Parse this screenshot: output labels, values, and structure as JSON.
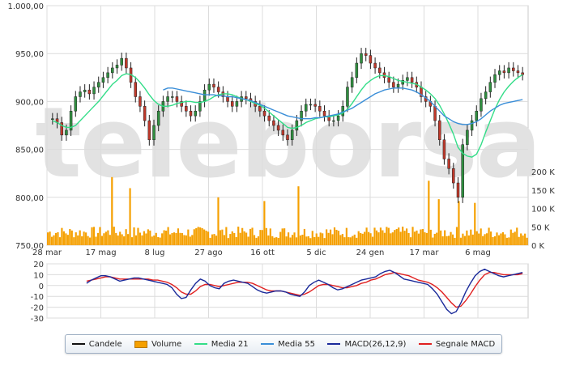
{
  "chart_data": [
    {
      "type": "candlestick",
      "series": [
        {
          "name": "Candele",
          "values": [
            882,
            878,
            865,
            870,
            890,
            905,
            910,
            912,
            908,
            915,
            920,
            925,
            930,
            935,
            938,
            945,
            935,
            920,
            905,
            895,
            880,
            860,
            875,
            890,
            900,
            905,
            905,
            900,
            895,
            890,
            885,
            890,
            900,
            912,
            918,
            915,
            910,
            905,
            900,
            895,
            900,
            905,
            903,
            900,
            895,
            890,
            885,
            880,
            875,
            870,
            865,
            860,
            870,
            880,
            890,
            897,
            897,
            895,
            890,
            885,
            880,
            880,
            885,
            895,
            915,
            925,
            940,
            950,
            948,
            940,
            935,
            930,
            925,
            920,
            915,
            918,
            922,
            925,
            920,
            915,
            905,
            900,
            895,
            880,
            860,
            840,
            830,
            815,
            800,
            855,
            870,
            880,
            890,
            903,
            910,
            920,
            928,
            932,
            930,
            935,
            932,
            930,
            928
          ]
        },
        {
          "name": "Media 21",
          "values": [
            880,
            878,
            875,
            873,
            873,
            875,
            880,
            885,
            890,
            895,
            900,
            906,
            912,
            918,
            922,
            927,
            929,
            928,
            925,
            920,
            914,
            907,
            901,
            897,
            895,
            895,
            896,
            898,
            899,
            900,
            900,
            899,
            899,
            900,
            902,
            905,
            907,
            908,
            908,
            907,
            905,
            903,
            902,
            900,
            898,
            896,
            893,
            889,
            885,
            881,
            877,
            873,
            872,
            873,
            875,
            878,
            880,
            882,
            883,
            884,
            884,
            885,
            886,
            888,
            892,
            898,
            905,
            912,
            918,
            922,
            925,
            927,
            927,
            926,
            924,
            922,
            921,
            920,
            919,
            918,
            915,
            912,
            908,
            903,
            896,
            887,
            877,
            866,
            852,
            846,
            843,
            842,
            845,
            855,
            868,
            880,
            892,
            902,
            910,
            916,
            921,
            925,
            928
          ]
        },
        {
          "name": "Media 55",
          "values": [
            null,
            null,
            null,
            null,
            null,
            null,
            null,
            null,
            null,
            null,
            null,
            null,
            null,
            null,
            null,
            null,
            null,
            null,
            null,
            null,
            null,
            null,
            null,
            null,
            912,
            914,
            914,
            913,
            912,
            911,
            910,
            909,
            908,
            907,
            907,
            907,
            906,
            906,
            905,
            905,
            904,
            903,
            902,
            901,
            899,
            897,
            895,
            893,
            891,
            889,
            887,
            885,
            884,
            883,
            882,
            882,
            882,
            883,
            883,
            884,
            885,
            886,
            887,
            889,
            891,
            893,
            896,
            899,
            902,
            905,
            908,
            910,
            912,
            913,
            914,
            914,
            914,
            913,
            912,
            910,
            907,
            904,
            900,
            895,
            890,
            885,
            882,
            879,
            877,
            876,
            876,
            877,
            879,
            882,
            886,
            890,
            893,
            896,
            898,
            899,
            900,
            901,
            902
          ]
        },
        {
          "name": "MACD(26,12,9)",
          "values": [
            2,
            5,
            7,
            9,
            9,
            8,
            6,
            4,
            5,
            6,
            7,
            7,
            6,
            5,
            4,
            3,
            2,
            1,
            -2,
            -8,
            -12,
            -11,
            -4,
            2,
            6,
            4,
            0,
            -2,
            -3,
            2,
            4,
            5,
            4,
            3,
            2,
            -1,
            -4,
            -6,
            -7,
            -6,
            -5,
            -5,
            -6,
            -8,
            -9,
            -10,
            -6,
            0,
            3,
            5,
            3,
            1,
            -2,
            -4,
            -3,
            -1,
            1,
            3,
            5,
            6,
            7,
            8,
            11,
            13,
            14,
            12,
            9,
            6,
            5,
            4,
            3,
            2,
            1,
            -3,
            -8,
            -15,
            -22,
            -26,
            -24,
            -16,
            -6,
            2,
            9,
            13,
            15,
            13,
            11,
            9,
            8,
            9,
            10,
            11,
            12
          ]
        },
        {
          "name": "Segnale MACD",
          "values": [
            4,
            5,
            6,
            7,
            8,
            8,
            7,
            6,
            6,
            6,
            6,
            6,
            6,
            6,
            5,
            5,
            4,
            3,
            1,
            -2,
            -6,
            -8,
            -8,
            -5,
            -1,
            1,
            1,
            0,
            -1,
            0,
            1,
            2,
            3,
            3,
            3,
            2,
            0,
            -2,
            -4,
            -5,
            -5,
            -5,
            -6,
            -7,
            -8,
            -9,
            -8,
            -6,
            -3,
            0,
            1,
            1,
            0,
            -1,
            -2,
            -2,
            -1,
            0,
            2,
            3,
            5,
            6,
            8,
            10,
            11,
            12,
            11,
            10,
            9,
            7,
            5,
            4,
            3,
            1,
            -2,
            -6,
            -11,
            -16,
            -20,
            -19,
            -14,
            -8,
            -1,
            5,
            10,
            12,
            12,
            11,
            10,
            10,
            10,
            10,
            11
          ]
        }
      ],
      "volume": {
        "name": "Volume",
        "baseline_approx": 35000,
        "spikes_approx": [
          185000,
          155000,
          130000,
          120000,
          160000,
          175000,
          125000,
          120000,
          115000
        ]
      },
      "x_tick_labels": [
        "28 mar",
        "17 mag",
        "8 lug",
        "27 ago",
        "16 ott",
        "5 dic",
        "24 gen",
        "17 mar",
        "6 mag"
      ],
      "y_tick_labels": [
        "1.000,00",
        "950,00",
        "900,00",
        "850,00",
        "800,00",
        "750,00"
      ],
      "ylim": [
        750,
        1000
      ],
      "volume_tick_labels": [
        "200 K",
        "150 K",
        "100 K",
        "50 K",
        "0 K"
      ],
      "volume_ylim": [
        0,
        200000
      ],
      "grid": true,
      "watermark": "teleborsa"
    },
    {
      "type": "line",
      "y_tick_labels": [
        "20",
        "10",
        "0",
        "-10",
        "-20",
        "-30"
      ],
      "ylim": [
        -30,
        20
      ],
      "grid": true
    }
  ],
  "legend": [
    {
      "label": "Candele",
      "color": "#111111",
      "kind": "line"
    },
    {
      "label": "Volume",
      "color": "#f5a000",
      "kind": "box"
    },
    {
      "label": "Media 21",
      "color": "#33dd88",
      "kind": "line"
    },
    {
      "label": "Media 55",
      "color": "#3a8ed8",
      "kind": "line"
    },
    {
      "label": "MACD(26,12,9)",
      "color": "#1a2a9a",
      "kind": "line"
    },
    {
      "label": "Segnale MACD",
      "color": "#e02020",
      "kind": "line"
    }
  ]
}
